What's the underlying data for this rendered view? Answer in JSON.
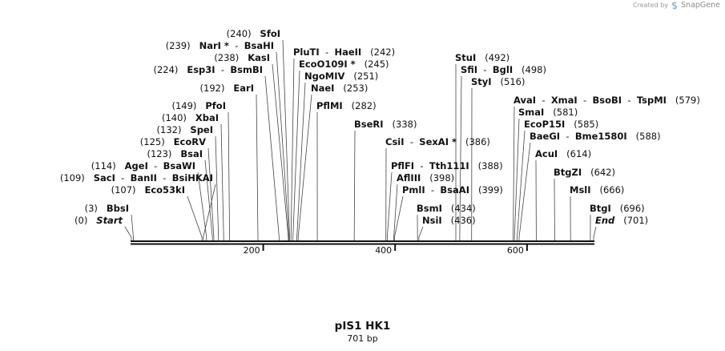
{
  "watermark": {
    "prefix": "Created by",
    "brand": "SnapGene"
  },
  "plasmid": {
    "name": "pIS1 HK1",
    "length_text": "701 bp",
    "length_bp": 701
  },
  "ruler": {
    "ticks": [
      "200",
      "400",
      "600"
    ],
    "tick_positions": [
      200,
      400,
      600
    ]
  },
  "sites": [
    {
      "id": "bbsi",
      "pos": 3,
      "label": "(3)   BbsI",
      "parts": [
        {
          "t": "(3)   "
        },
        {
          "t": "BbsI",
          "s": "nm"
        }
      ]
    },
    {
      "id": "start",
      "pos": 0,
      "label": "(0)   Start",
      "parts": [
        {
          "t": "(0)   "
        },
        {
          "t": "Start",
          "s": "it"
        }
      ]
    },
    {
      "id": "saci",
      "pos": 109,
      "label": "(109)   SacI  -  BanII  -  BsiHKAI",
      "parts": [
        {
          "t": "(109)   "
        },
        {
          "t": "SacI",
          "s": "nm"
        },
        {
          "t": "  -  "
        },
        {
          "t": "BanII",
          "s": "nm"
        },
        {
          "t": "  -  "
        },
        {
          "t": "BsiHKAI",
          "s": "nm"
        }
      ]
    },
    {
      "id": "eco53ki",
      "pos": 107,
      "label": "(107)   Eco53kI",
      "parts": [
        {
          "t": "(107)   "
        },
        {
          "t": "Eco53kI",
          "s": "nm"
        }
      ]
    },
    {
      "id": "agei",
      "pos": 114,
      "label": "(114)   AgeI  -  BsaWI",
      "parts": [
        {
          "t": "(114)   "
        },
        {
          "t": "AgeI",
          "s": "nm"
        },
        {
          "t": "  -  "
        },
        {
          "t": "BsaWI",
          "s": "nm"
        }
      ]
    },
    {
      "id": "bsai",
      "pos": 123,
      "label": "(123)   BsaI",
      "parts": [
        {
          "t": "(123)   "
        },
        {
          "t": "BsaI",
          "s": "nm"
        }
      ]
    },
    {
      "id": "ecorv",
      "pos": 125,
      "label": "(125)   EcoRV",
      "parts": [
        {
          "t": "(125)   "
        },
        {
          "t": "EcoRV",
          "s": "nm"
        }
      ]
    },
    {
      "id": "spei",
      "pos": 132,
      "label": "(132)   SpeI",
      "parts": [
        {
          "t": "(132)   "
        },
        {
          "t": "SpeI",
          "s": "nm"
        }
      ]
    },
    {
      "id": "xbai",
      "pos": 140,
      "label": "(140)   XbaI",
      "parts": [
        {
          "t": "(140)   "
        },
        {
          "t": "XbaI",
          "s": "nm"
        }
      ]
    },
    {
      "id": "pfoi",
      "pos": 149,
      "label": "(149)   PfoI",
      "parts": [
        {
          "t": "(149)   "
        },
        {
          "t": "PfoI",
          "s": "nm"
        }
      ]
    },
    {
      "id": "eari",
      "pos": 192,
      "label": "(192)   EarI",
      "parts": [
        {
          "t": "(192)   "
        },
        {
          "t": "EarI",
          "s": "nm"
        }
      ]
    },
    {
      "id": "esp3i",
      "pos": 224,
      "label": "(224)   Esp3I  -  BsmBI",
      "parts": [
        {
          "t": "(224)   "
        },
        {
          "t": "Esp3I",
          "s": "nm"
        },
        {
          "t": "  -  "
        },
        {
          "t": "BsmBI",
          "s": "nm"
        }
      ]
    },
    {
      "id": "kasi",
      "pos": 238,
      "label": "(238)   KasI",
      "parts": [
        {
          "t": "(238)   "
        },
        {
          "t": "KasI",
          "s": "nm"
        }
      ]
    },
    {
      "id": "nari",
      "pos": 239,
      "label": "(239)   NarI *  -  BsaHI",
      "parts": [
        {
          "t": "(239)   "
        },
        {
          "t": "NarI *",
          "s": "nm"
        },
        {
          "t": "  -  "
        },
        {
          "t": "BsaHI",
          "s": "nm"
        }
      ]
    },
    {
      "id": "sfoi",
      "pos": 240,
      "label": "(240)   SfoI",
      "parts": [
        {
          "t": "(240)   "
        },
        {
          "t": "SfoI",
          "s": "nm"
        }
      ]
    },
    {
      "id": "pluti",
      "pos": 242,
      "label": "PluTI  -  HaeII   (242)",
      "parts": [
        {
          "t": "PluTI",
          "s": "nm"
        },
        {
          "t": "  -  "
        },
        {
          "t": "HaeII",
          "s": "nm"
        },
        {
          "t": "   (242)"
        }
      ]
    },
    {
      "id": "ecoo109i",
      "pos": 245,
      "label": "EcoO109I *   (245)",
      "parts": [
        {
          "t": "EcoO109I *",
          "s": "nm"
        },
        {
          "t": "   (245)"
        }
      ]
    },
    {
      "id": "ngomiv",
      "pos": 251,
      "label": "NgoMIV   (251)",
      "parts": [
        {
          "t": "NgoMIV",
          "s": "nm"
        },
        {
          "t": "   (251)"
        }
      ]
    },
    {
      "id": "naei",
      "pos": 253,
      "label": "NaeI   (253)",
      "parts": [
        {
          "t": "NaeI",
          "s": "nm"
        },
        {
          "t": "   (253)"
        }
      ]
    },
    {
      "id": "pflmi",
      "pos": 282,
      "label": "PflMI   (282)",
      "parts": [
        {
          "t": "PflMI",
          "s": "nm"
        },
        {
          "t": "   (282)"
        }
      ]
    },
    {
      "id": "bseri",
      "pos": 338,
      "label": "BseRI   (338)",
      "parts": [
        {
          "t": "BseRI",
          "s": "nm"
        },
        {
          "t": "   (338)"
        }
      ]
    },
    {
      "id": "csii",
      "pos": 386,
      "label": "CsiI  -  SexAI *   (386)",
      "parts": [
        {
          "t": "CsiI",
          "s": "nm"
        },
        {
          "t": "  -  "
        },
        {
          "t": "SexAI *",
          "s": "nm"
        },
        {
          "t": "   (386)"
        }
      ]
    },
    {
      "id": "pflfi",
      "pos": 388,
      "label": "PflFI  -  Tth111I   (388)",
      "parts": [
        {
          "t": "PflFI",
          "s": "nm"
        },
        {
          "t": "  -  "
        },
        {
          "t": "Tth111I",
          "s": "nm"
        },
        {
          "t": "   (388)"
        }
      ]
    },
    {
      "id": "afliii",
      "pos": 398,
      "label": "AflIII   (398)",
      "parts": [
        {
          "t": "AflIII",
          "s": "nm"
        },
        {
          "t": "   (398)"
        }
      ]
    },
    {
      "id": "pmli",
      "pos": 399,
      "label": "PmlI  -  BsaAI   (399)",
      "parts": [
        {
          "t": "PmlI",
          "s": "nm"
        },
        {
          "t": "  -  "
        },
        {
          "t": "BsaAI",
          "s": "nm"
        },
        {
          "t": "   (399)"
        }
      ]
    },
    {
      "id": "bsmi",
      "pos": 434,
      "label": "BsmI   (434)",
      "parts": [
        {
          "t": "BsmI",
          "s": "nm"
        },
        {
          "t": "   (434)"
        }
      ]
    },
    {
      "id": "nsii",
      "pos": 436,
      "label": "NsiI   (436)",
      "parts": [
        {
          "t": "NsiI",
          "s": "nm"
        },
        {
          "t": "   (436)"
        }
      ]
    },
    {
      "id": "stui",
      "pos": 492,
      "label": "StuI   (492)",
      "parts": [
        {
          "t": "StuI",
          "s": "nm"
        },
        {
          "t": "   (492)"
        }
      ]
    },
    {
      "id": "sfii",
      "pos": 498,
      "label": "SfiI  -  BglI   (498)",
      "parts": [
        {
          "t": "SfiI",
          "s": "nm"
        },
        {
          "t": "  -  "
        },
        {
          "t": "BglI",
          "s": "nm"
        },
        {
          "t": "   (498)"
        }
      ]
    },
    {
      "id": "styi",
      "pos": 516,
      "label": "StyI   (516)",
      "parts": [
        {
          "t": "StyI",
          "s": "nm"
        },
        {
          "t": "   (516)"
        }
      ]
    },
    {
      "id": "avai",
      "pos": 579,
      "label": "AvaI  -  XmaI  -  BsoBI  -  TspMI   (579)",
      "parts": [
        {
          "t": "AvaI",
          "s": "nm"
        },
        {
          "t": "  -  "
        },
        {
          "t": "XmaI",
          "s": "nm"
        },
        {
          "t": "  -  "
        },
        {
          "t": "BsoBI",
          "s": "nm"
        },
        {
          "t": "  -  "
        },
        {
          "t": "TspMI",
          "s": "nm"
        },
        {
          "t": "   (579)"
        }
      ]
    },
    {
      "id": "smai",
      "pos": 581,
      "label": "SmaI   (581)",
      "parts": [
        {
          "t": "SmaI",
          "s": "nm"
        },
        {
          "t": "   (581)"
        }
      ]
    },
    {
      "id": "ecop15i",
      "pos": 585,
      "label": "EcoP15I   (585)",
      "parts": [
        {
          "t": "EcoP15I",
          "s": "nm"
        },
        {
          "t": "   (585)"
        }
      ]
    },
    {
      "id": "baegi",
      "pos": 588,
      "label": "BaeGI  -  Bme1580I   (588)",
      "parts": [
        {
          "t": "BaeGI",
          "s": "nm"
        },
        {
          "t": "  -  "
        },
        {
          "t": "Bme1580I",
          "s": "nm"
        },
        {
          "t": "   (588)"
        }
      ]
    },
    {
      "id": "acui",
      "pos": 614,
      "label": "AcuI   (614)",
      "parts": [
        {
          "t": "AcuI",
          "s": "nm"
        },
        {
          "t": "   (614)"
        }
      ]
    },
    {
      "id": "btgzi",
      "pos": 642,
      "label": "BtgZI   (642)",
      "parts": [
        {
          "t": "BtgZI",
          "s": "nm"
        },
        {
          "t": "   (642)"
        }
      ]
    },
    {
      "id": "msli",
      "pos": 666,
      "label": "MslI   (666)",
      "parts": [
        {
          "t": "MslI",
          "s": "nm"
        },
        {
          "t": "   (666)"
        }
      ]
    },
    {
      "id": "btgi",
      "pos": 696,
      "label": "BtgI   (696)",
      "parts": [
        {
          "t": "BtgI",
          "s": "nm"
        },
        {
          "t": "   (696)"
        }
      ]
    },
    {
      "id": "end",
      "pos": 701,
      "label": "End   (701)",
      "parts": [
        {
          "t": "End",
          "s": "it"
        },
        {
          "t": "   (701)"
        }
      ]
    }
  ]
}
